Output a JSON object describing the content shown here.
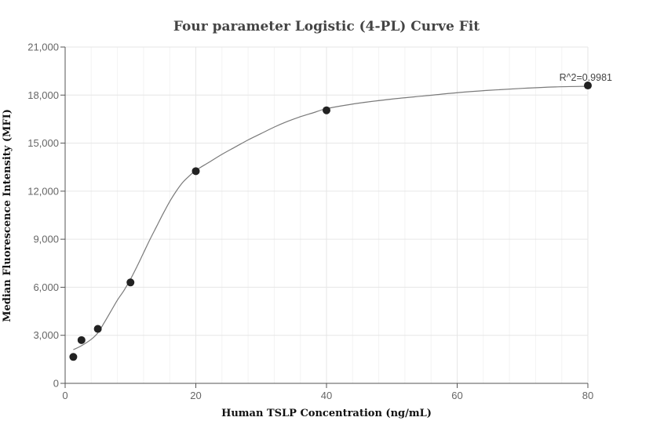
{
  "chart_data": {
    "type": "scatter",
    "title": "Four parameter Logistic (4-PL) Curve Fit",
    "xlabel": "Human TSLP Concentration (ng/mL)",
    "ylabel": "Median Fluorescence Intensity (MFI)",
    "xlim": [
      0,
      80
    ],
    "ylim": [
      0,
      21000
    ],
    "x_ticks": [
      0,
      20,
      40,
      60,
      80
    ],
    "y_ticks": [
      0,
      3000,
      6000,
      9000,
      12000,
      15000,
      18000,
      21000
    ],
    "x_tick_labels": [
      "0",
      "20",
      "40",
      "60",
      "80"
    ],
    "y_tick_labels": [
      "0",
      "3,000",
      "6,000",
      "9,000",
      "12,000",
      "15,000",
      "18,000",
      "21,000"
    ],
    "grid": true,
    "points": [
      {
        "x": 1.25,
        "y": 1650
      },
      {
        "x": 2.5,
        "y": 2700
      },
      {
        "x": 5,
        "y": 3400
      },
      {
        "x": 10,
        "y": 6300
      },
      {
        "x": 20,
        "y": 13250
      },
      {
        "x": 40,
        "y": 17050
      },
      {
        "x": 80,
        "y": 18600
      }
    ],
    "fit": {
      "model": "4PL",
      "curve_points": [
        [
          1.25,
          2100
        ],
        [
          2.5,
          2350
        ],
        [
          4,
          2750
        ],
        [
          5,
          3150
        ],
        [
          6,
          3800
        ],
        [
          7,
          4500
        ],
        [
          8,
          5200
        ],
        [
          9,
          5800
        ],
        [
          10,
          6500
        ],
        [
          11,
          7300
        ],
        [
          12,
          8150
        ],
        [
          13,
          9000
        ],
        [
          14,
          9800
        ],
        [
          15,
          10600
        ],
        [
          16,
          11350
        ],
        [
          17,
          12000
        ],
        [
          18,
          12550
        ],
        [
          19,
          12950
        ],
        [
          20,
          13300
        ],
        [
          22,
          13800
        ],
        [
          24,
          14300
        ],
        [
          26,
          14750
        ],
        [
          28,
          15200
        ],
        [
          30,
          15600
        ],
        [
          32,
          16000
        ],
        [
          34,
          16350
        ],
        [
          36,
          16650
        ],
        [
          38,
          16900
        ],
        [
          40,
          17150
        ],
        [
          45,
          17500
        ],
        [
          50,
          17750
        ],
        [
          55,
          17950
        ],
        [
          60,
          18150
        ],
        [
          65,
          18300
        ],
        [
          70,
          18420
        ],
        [
          75,
          18510
        ],
        [
          80,
          18550
        ]
      ]
    },
    "annotation": "R^2=0.9981"
  }
}
